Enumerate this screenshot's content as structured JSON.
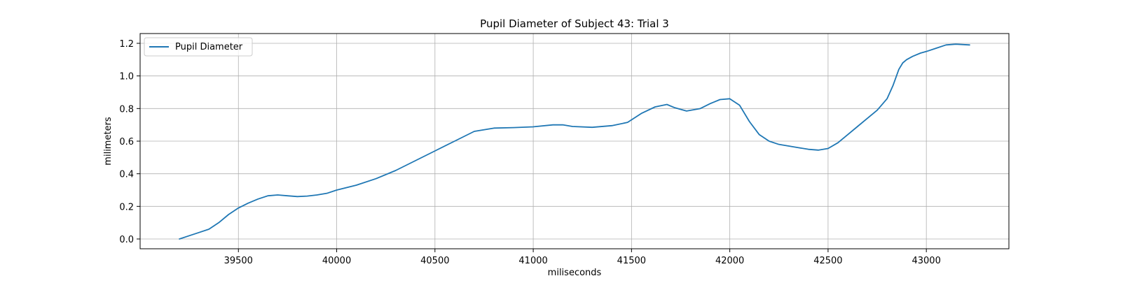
{
  "chart_data": {
    "type": "line",
    "title": "Pupil Diameter of Subject 43: Trial 3",
    "xlabel": "miliseconds",
    "ylabel": "milimeters",
    "xlim": [
      39000,
      43420
    ],
    "ylim": [
      -0.06,
      1.26
    ],
    "xticks": [
      39500,
      40000,
      40500,
      41000,
      41500,
      42000,
      42500,
      43000
    ],
    "yticks": [
      0.0,
      0.2,
      0.4,
      0.6,
      0.8,
      1.0,
      1.2
    ],
    "grid": true,
    "legend_position": "top-left",
    "series": [
      {
        "name": "Pupil Diameter",
        "color": "#1f77b4",
        "x": [
          39200,
          39250,
          39300,
          39350,
          39400,
          39450,
          39500,
          39550,
          39600,
          39650,
          39700,
          39750,
          39800,
          39850,
          39900,
          39950,
          40000,
          40100,
          40200,
          40300,
          40400,
          40500,
          40600,
          40700,
          40800,
          40900,
          41000,
          41100,
          41150,
          41200,
          41300,
          41400,
          41480,
          41550,
          41620,
          41680,
          41720,
          41780,
          41850,
          41900,
          41950,
          42000,
          42050,
          42100,
          42150,
          42200,
          42250,
          42300,
          42350,
          42400,
          42450,
          42500,
          42550,
          42600,
          42650,
          42700,
          42750,
          42800,
          42830,
          42860,
          42880,
          42900,
          42930,
          42970,
          43000,
          43050,
          43100,
          43150,
          43220
        ],
        "y": [
          0.0,
          0.02,
          0.04,
          0.06,
          0.1,
          0.15,
          0.19,
          0.22,
          0.245,
          0.265,
          0.27,
          0.265,
          0.26,
          0.263,
          0.27,
          0.28,
          0.3,
          0.33,
          0.37,
          0.42,
          0.48,
          0.54,
          0.6,
          0.66,
          0.68,
          0.683,
          0.688,
          0.7,
          0.7,
          0.69,
          0.685,
          0.695,
          0.715,
          0.77,
          0.81,
          0.825,
          0.805,
          0.785,
          0.8,
          0.83,
          0.855,
          0.86,
          0.82,
          0.72,
          0.64,
          0.6,
          0.58,
          0.57,
          0.56,
          0.55,
          0.545,
          0.555,
          0.59,
          0.64,
          0.69,
          0.74,
          0.79,
          0.86,
          0.94,
          1.04,
          1.08,
          1.1,
          1.12,
          1.14,
          1.15,
          1.17,
          1.19,
          1.195,
          1.19
        ]
      }
    ]
  }
}
